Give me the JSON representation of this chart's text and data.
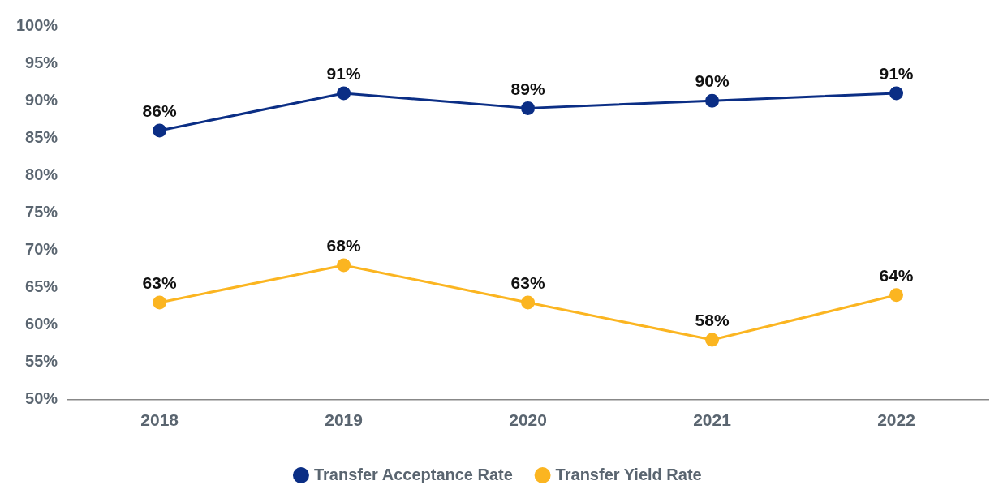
{
  "chart_data": {
    "type": "line",
    "categories": [
      "2018",
      "2019",
      "2020",
      "2021",
      "2022"
    ],
    "series": [
      {
        "name": "Transfer Acceptance Rate",
        "color": "#0b2e85",
        "values": [
          86,
          91,
          89,
          90,
          91
        ],
        "value_labels": [
          "86%",
          "91%",
          "89%",
          "90%",
          "91%"
        ]
      },
      {
        "name": "Transfer Yield Rate",
        "color": "#fbb521",
        "values": [
          63,
          68,
          63,
          58,
          64
        ],
        "value_labels": [
          "63%",
          "68%",
          "63%",
          "58%",
          "64%"
        ]
      }
    ],
    "ylim": [
      50,
      100
    ],
    "yticks": [
      {
        "value": 50,
        "label": "50%"
      },
      {
        "value": 55,
        "label": "55%"
      },
      {
        "value": 60,
        "label": "60%"
      },
      {
        "value": 65,
        "label": "65%"
      },
      {
        "value": 70,
        "label": "70%"
      },
      {
        "value": 75,
        "label": "75%"
      },
      {
        "value": 80,
        "label": "80%"
      },
      {
        "value": 85,
        "label": "85%"
      },
      {
        "value": 90,
        "label": "90%"
      },
      {
        "value": 95,
        "label": "95%"
      },
      {
        "value": 100,
        "label": "100%"
      }
    ],
    "grid": false,
    "legend": "bottom",
    "marker": "circle",
    "line_style": "solid"
  }
}
